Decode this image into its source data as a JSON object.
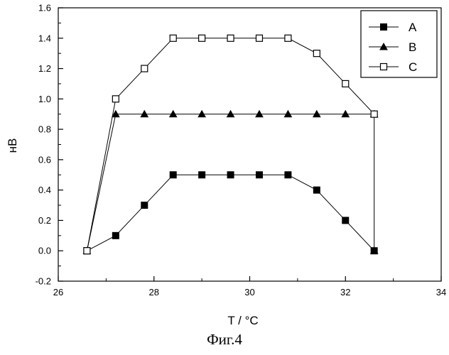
{
  "chart_data": {
    "type": "line",
    "xlabel": "T / °C",
    "ylabel": "нВ",
    "xlim": [
      26,
      34
    ],
    "ylim": [
      -0.2,
      1.6
    ],
    "x_ticks": [
      26,
      28,
      30,
      32,
      34
    ],
    "x_tick_labels": [
      "26",
      "28",
      "30",
      "32",
      "34"
    ],
    "y_ticks": [
      -0.2,
      0.0,
      0.2,
      0.4,
      0.6,
      0.8,
      1.0,
      1.2,
      1.4,
      1.6
    ],
    "y_tick_labels": [
      "-0.2",
      "0.0",
      "0.2",
      "0.4",
      "0.6",
      "0.8",
      "1.0",
      "1.2",
      "1.4",
      "1.6"
    ],
    "grid": false,
    "legend_position": "top-right",
    "series": [
      {
        "name": "A",
        "marker": "filled-square",
        "x": [
          26.6,
          27.2,
          27.8,
          28.4,
          29.0,
          29.6,
          30.2,
          30.8,
          31.4,
          32.0,
          32.6
        ],
        "y": [
          0.0,
          0.1,
          0.3,
          0.5,
          0.5,
          0.5,
          0.5,
          0.5,
          0.4,
          0.2,
          0.0
        ]
      },
      {
        "name": "B",
        "marker": "filled-triangle",
        "x": [
          26.6,
          27.2,
          27.8,
          28.4,
          29.0,
          29.6,
          30.2,
          30.8,
          31.4,
          32.0,
          32.6,
          32.6
        ],
        "y": [
          0.0,
          0.9,
          0.9,
          0.9,
          0.9,
          0.9,
          0.9,
          0.9,
          0.9,
          0.9,
          0.9,
          0.0
        ]
      },
      {
        "name": "C",
        "marker": "open-square",
        "x": [
          26.6,
          27.2,
          27.8,
          28.4,
          29.0,
          29.6,
          30.2,
          30.8,
          31.4,
          32.0,
          32.6
        ],
        "y": [
          0.0,
          1.0,
          1.2,
          1.4,
          1.4,
          1.4,
          1.4,
          1.4,
          1.3,
          1.1,
          0.9
        ]
      }
    ]
  },
  "caption": "Фиг.4",
  "colors": {
    "ink": "#000000",
    "background": "#ffffff"
  }
}
